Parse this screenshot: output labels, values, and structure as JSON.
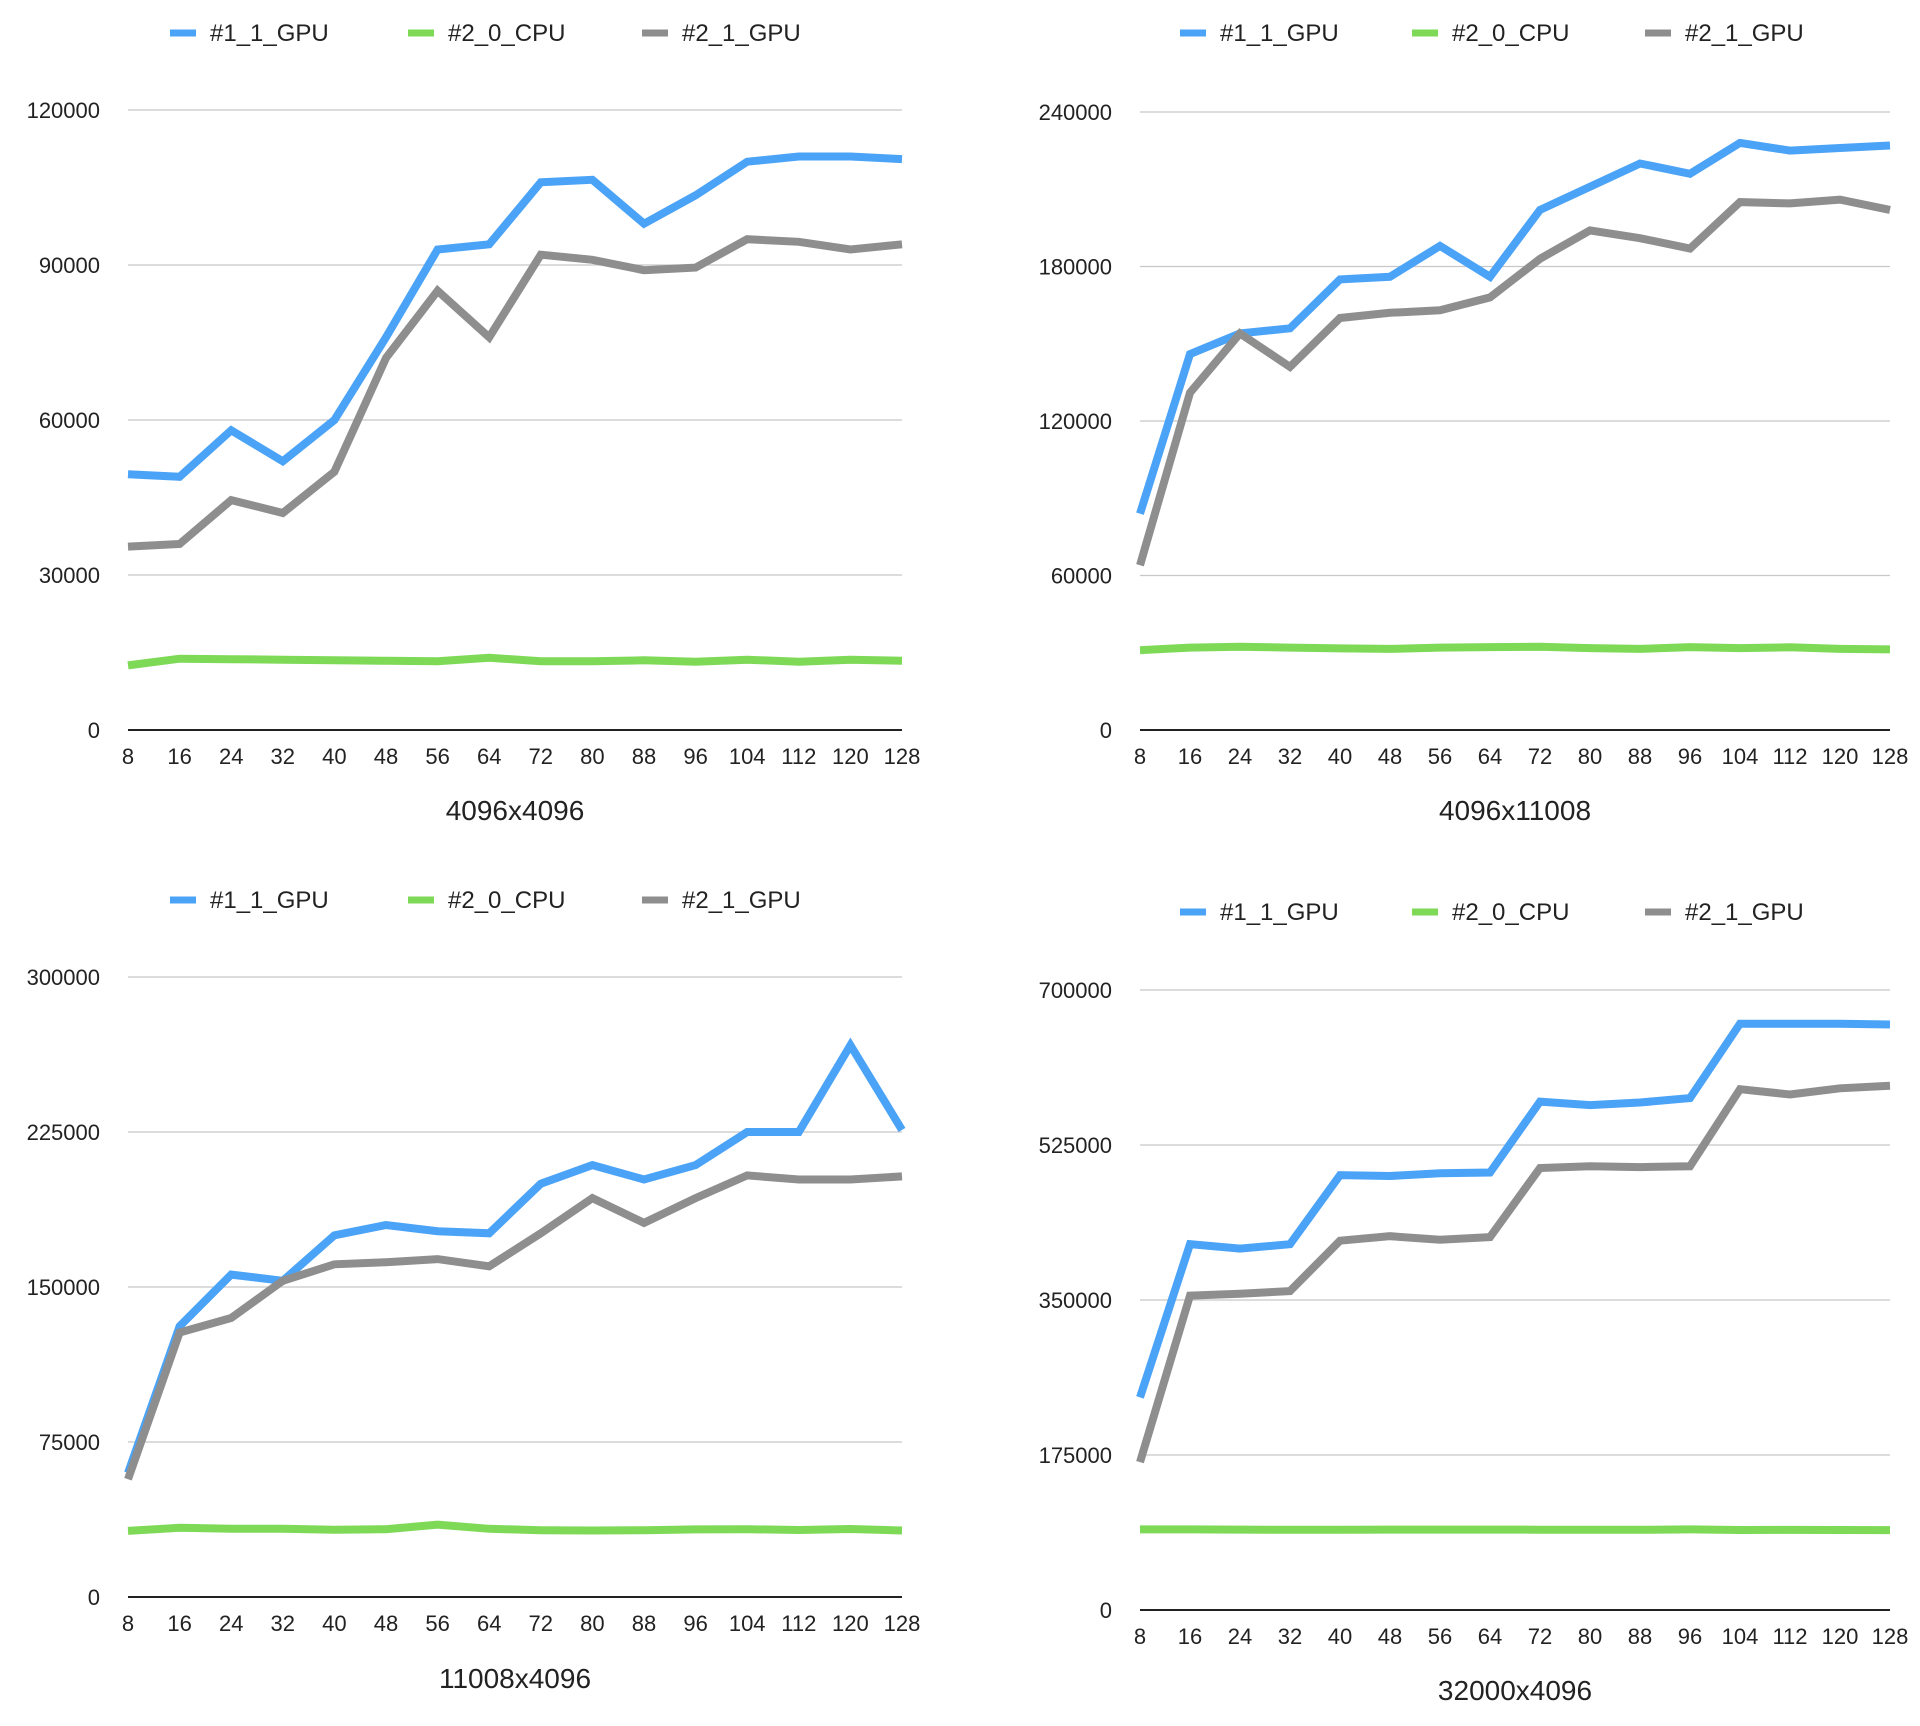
{
  "chart_data": [
    {
      "type": "line",
      "title": "",
      "xlabel": "4096x4096",
      "ylabel": "",
      "categories": [
        "8",
        "16",
        "24",
        "32",
        "40",
        "48",
        "56",
        "64",
        "72",
        "80",
        "88",
        "96",
        "104",
        "112",
        "120",
        "128"
      ],
      "yticks": [
        "0",
        "30000",
        "60000",
        "90000",
        "120000"
      ],
      "ylim": [
        0,
        120000
      ],
      "grid": true,
      "legend": "top",
      "series": [
        {
          "name": "#1_1_GPU",
          "color": "#4BA3F7",
          "values": [
            49500,
            49000,
            58000,
            52000,
            60000,
            76000,
            93000,
            94000,
            106000,
            106500,
            98000,
            103500,
            110000,
            111000,
            111000,
            110500
          ]
        },
        {
          "name": "#2_0_CPU",
          "color": "#7ED957",
          "values": [
            12500,
            13800,
            13700,
            13600,
            13500,
            13400,
            13300,
            14000,
            13300,
            13300,
            13500,
            13200,
            13600,
            13200,
            13600,
            13400
          ]
        },
        {
          "name": "#2_1_GPU",
          "color": "#8E8E8E",
          "values": [
            35500,
            36000,
            44500,
            42000,
            50000,
            72000,
            85000,
            76000,
            92000,
            91000,
            89000,
            89500,
            95000,
            94500,
            93000,
            94000
          ]
        }
      ]
    },
    {
      "type": "line",
      "title": "",
      "xlabel": "4096x11008",
      "ylabel": "",
      "categories": [
        "8",
        "16",
        "24",
        "32",
        "40",
        "48",
        "56",
        "64",
        "72",
        "80",
        "88",
        "96",
        "104",
        "112",
        "120",
        "128"
      ],
      "yticks": [
        "0",
        "60000",
        "120000",
        "180000",
        "240000"
      ],
      "ylim": [
        0,
        240000
      ],
      "grid": true,
      "legend": "top",
      "series": [
        {
          "name": "#1_1_GPU",
          "color": "#4BA3F7",
          "values": [
            84000,
            146000,
            154000,
            156000,
            175000,
            176000,
            188000,
            176000,
            202000,
            211000,
            220000,
            216000,
            228000,
            225000,
            226000,
            227000
          ]
        },
        {
          "name": "#2_0_CPU",
          "color": "#7ED957",
          "values": [
            31000,
            32000,
            32300,
            32000,
            31700,
            31500,
            32000,
            32200,
            32300,
            31800,
            31500,
            32200,
            31800,
            32100,
            31500,
            31300
          ]
        },
        {
          "name": "#2_1_GPU",
          "color": "#8E8E8E",
          "values": [
            64000,
            131000,
            154000,
            141000,
            160000,
            162000,
            163000,
            168000,
            183000,
            194000,
            191000,
            187000,
            205000,
            204500,
            206000,
            202000
          ]
        }
      ]
    },
    {
      "type": "line",
      "title": "",
      "xlabel": "11008x4096",
      "ylabel": "",
      "categories": [
        "8",
        "16",
        "24",
        "32",
        "40",
        "48",
        "56",
        "64",
        "72",
        "80",
        "88",
        "96",
        "104",
        "112",
        "120",
        "128"
      ],
      "yticks": [
        "0",
        "75000",
        "150000",
        "225000",
        "300000"
      ],
      "ylim": [
        0,
        300000
      ],
      "grid": true,
      "legend": "top",
      "series": [
        {
          "name": "#1_1_GPU",
          "color": "#4BA3F7",
          "values": [
            60000,
            131000,
            156000,
            153000,
            175000,
            180000,
            177000,
            176000,
            200000,
            209000,
            202000,
            209000,
            225000,
            225000,
            267000,
            226000
          ]
        },
        {
          "name": "#2_0_CPU",
          "color": "#7ED957",
          "values": [
            32000,
            33500,
            33000,
            33000,
            32500,
            32800,
            35000,
            33000,
            32300,
            32200,
            32300,
            32700,
            32800,
            32400,
            32900,
            32200
          ]
        },
        {
          "name": "#2_1_GPU",
          "color": "#8E8E8E",
          "values": [
            57000,
            128000,
            135000,
            153000,
            161000,
            162000,
            163500,
            160000,
            176000,
            193000,
            181000,
            193000,
            204000,
            202000,
            202000,
            203500
          ]
        }
      ]
    },
    {
      "type": "line",
      "title": "",
      "xlabel": "32000x4096",
      "ylabel": "",
      "categories": [
        "8",
        "16",
        "24",
        "32",
        "40",
        "48",
        "56",
        "64",
        "72",
        "80",
        "88",
        "96",
        "104",
        "112",
        "120",
        "128"
      ],
      "yticks": [
        "0",
        "175000",
        "350000",
        "525000",
        "700000"
      ],
      "ylim": [
        0,
        700000
      ],
      "grid": true,
      "legend": "top",
      "series": [
        {
          "name": "#1_1_GPU",
          "color": "#4BA3F7",
          "values": [
            240000,
            413000,
            408000,
            413000,
            491000,
            490000,
            493000,
            494000,
            574000,
            570000,
            573000,
            578000,
            662000,
            662000,
            662000,
            661000
          ]
        },
        {
          "name": "#2_0_CPU",
          "color": "#7ED957",
          "values": [
            91000,
            91000,
            90800,
            90500,
            90500,
            90800,
            90800,
            90800,
            90700,
            90500,
            90500,
            91000,
            90300,
            90400,
            90300,
            90200
          ]
        },
        {
          "name": "#2_1_GPU",
          "color": "#8E8E8E",
          "values": [
            167000,
            355000,
            357000,
            360000,
            417000,
            422000,
            418000,
            421000,
            499000,
            501000,
            500000,
            501000,
            588000,
            582000,
            589000,
            592000
          ]
        }
      ]
    }
  ]
}
